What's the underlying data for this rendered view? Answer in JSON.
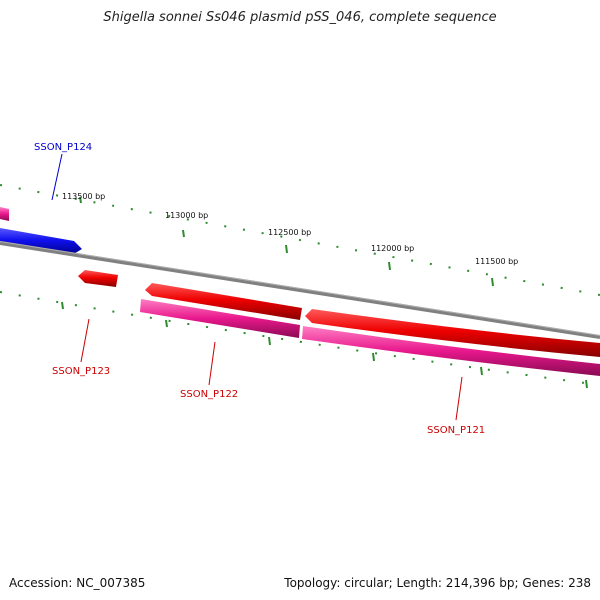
{
  "title": "Shigella sonnei Ss046 plasmid pSS_046, complete sequence",
  "footer": {
    "accession": "Accession: NC_007385",
    "topology": "Topology: circular; Length: 214,396 bp; Genes: 238"
  },
  "ticks": [
    "113500 bp",
    "113000 bp",
    "112500 bp",
    "112000 bp",
    "111500 bp"
  ],
  "genes": [
    {
      "name": "SSON_P124",
      "color": "#0000cc"
    },
    {
      "name": "SSON_P123",
      "color": "#cc0000"
    },
    {
      "name": "SSON_P122",
      "color": "#cc0000"
    },
    {
      "name": "SSON_P121",
      "color": "#cc0000"
    }
  ],
  "colors": {
    "forward_gene": "#1010ee",
    "reverse_gene": "#ee0000",
    "pink_track": "#e8188c",
    "backbone": "#808080",
    "tick": "#2e8b2e"
  }
}
